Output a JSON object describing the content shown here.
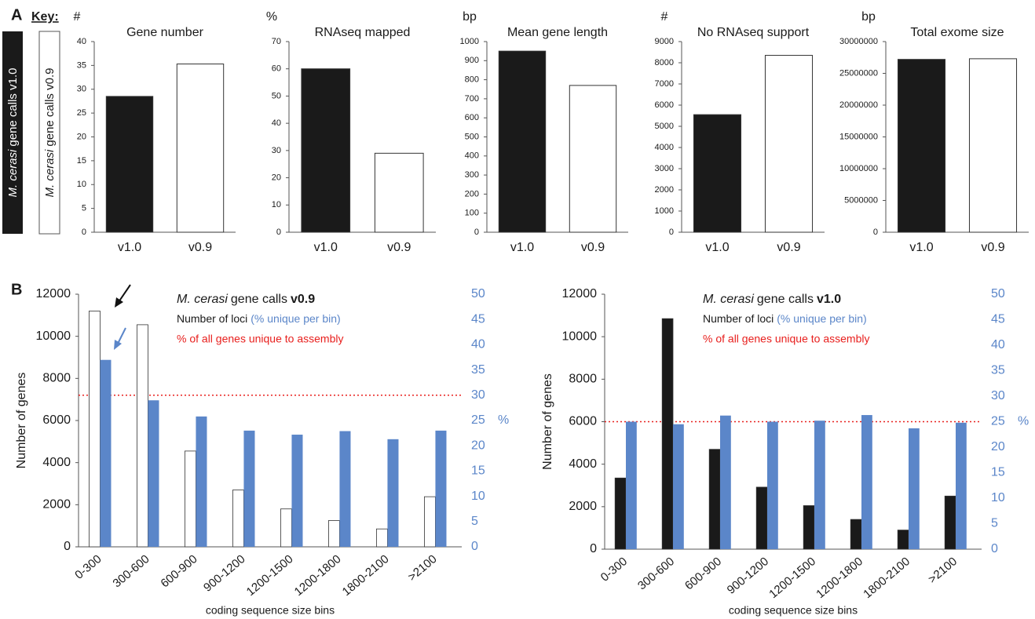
{
  "panel_labels": [
    "A",
    "B"
  ],
  "key": {
    "title": "Key:",
    "items": [
      [
        "M. cerasi",
        "gene calls v1.0"
      ],
      [
        "M. cerasi",
        "gene calls v0.9"
      ]
    ]
  },
  "chart_data": [
    {
      "type": "bar",
      "title": "Gene number",
      "ylabel": "#",
      "categories": [
        "v1.0",
        "v0.9"
      ],
      "values": [
        28.5,
        35.3
      ],
      "colors": [
        "#1a1a1a",
        "#ffffff"
      ],
      "ylim": [
        0,
        40
      ],
      "yticks": [
        0,
        5,
        10,
        15,
        20,
        25,
        30,
        35,
        40
      ]
    },
    {
      "type": "bar",
      "title": "RNAseq mapped",
      "ylabel": "%",
      "categories": [
        "v1.0",
        "v0.9"
      ],
      "values": [
        60,
        29
      ],
      "colors": [
        "#1a1a1a",
        "#ffffff"
      ],
      "ylim": [
        0,
        70
      ],
      "yticks": [
        0,
        10,
        20,
        30,
        40,
        50,
        60,
        70
      ]
    },
    {
      "type": "bar",
      "title": "Mean gene length",
      "ylabel": "bp",
      "categories": [
        "v1.0",
        "v0.9"
      ],
      "values": [
        950,
        770
      ],
      "colors": [
        "#1a1a1a",
        "#ffffff"
      ],
      "ylim": [
        0,
        1000
      ],
      "yticks": [
        0,
        100,
        200,
        300,
        400,
        500,
        600,
        700,
        800,
        900,
        1000
      ]
    },
    {
      "type": "bar",
      "title": "No RNAseq support",
      "ylabel": "#",
      "categories": [
        "v1.0",
        "v0.9"
      ],
      "values": [
        5550,
        8350
      ],
      "colors": [
        "#1a1a1a",
        "#ffffff"
      ],
      "ylim": [
        0,
        9000
      ],
      "yticks": [
        0,
        1000,
        2000,
        3000,
        4000,
        5000,
        6000,
        7000,
        8000,
        9000
      ]
    },
    {
      "type": "bar",
      "title": "Total exome size",
      "ylabel": "bp",
      "categories": [
        "v1.0",
        "v0.9"
      ],
      "values": [
        27200000,
        27300000
      ],
      "colors": [
        "#1a1a1a",
        "#ffffff"
      ],
      "ylim": [
        0,
        30000000
      ],
      "yticks": [
        0,
        5000000,
        10000000,
        15000000,
        20000000,
        25000000,
        30000000
      ]
    },
    {
      "type": "dual-bar",
      "title": [
        "M. cerasi",
        "gene calls",
        "v0.9"
      ],
      "ylabel": "Number of genes",
      "y2label": "%",
      "xlabel": "coding sequence size bins",
      "categories": [
        "0-300",
        "300-600",
        "600-900",
        "900-1200",
        "1200-1500",
        "1200-1800",
        "1800-2100",
        ">2100"
      ],
      "series": [
        {
          "name": "Number of loci",
          "color": "#ffffff",
          "values": [
            11200,
            10550,
            4550,
            2700,
            1800,
            1250,
            850,
            2380
          ]
        },
        {
          "name": "(% unique per bin)",
          "color": "#5b86c9",
          "axis": "y2",
          "values": [
            37,
            29,
            25.8,
            23,
            22.2,
            22.9,
            21.3,
            23
          ]
        }
      ],
      "hline": {
        "value": 30,
        "axis": "y2",
        "label": "% of all genes unique to assembly",
        "color": "#e8201e"
      },
      "ylim": [
        0,
        12000
      ],
      "yticks": [
        0,
        2000,
        4000,
        6000,
        8000,
        10000,
        12000
      ],
      "y2lim": [
        0,
        50
      ],
      "y2ticks": [
        0,
        5,
        10,
        15,
        20,
        25,
        30,
        35,
        40,
        45,
        50
      ]
    },
    {
      "type": "dual-bar",
      "title": [
        "M. cerasi",
        "gene calls",
        "v1.0"
      ],
      "ylabel": "Number of genes",
      "y2label": "%",
      "xlabel": "coding sequence size bins",
      "categories": [
        "0-300",
        "300-600",
        "600-900",
        "900-1200",
        "1200-1500",
        "1200-1800",
        "1800-2100",
        ">2100"
      ],
      "series": [
        {
          "name": "Number of loci",
          "color": "#1a1a1a",
          "values": [
            3350,
            10850,
            4700,
            2920,
            2050,
            1400,
            900,
            2500
          ]
        },
        {
          "name": "(% unique per bin)",
          "color": "#5b86c9",
          "axis": "y2",
          "values": [
            25,
            24.5,
            26.2,
            25,
            25.2,
            26.3,
            23.7,
            24.8
          ]
        }
      ],
      "hline": {
        "value": 25,
        "axis": "y2",
        "label": "% of all genes unique to assembly",
        "color": "#e8201e"
      },
      "ylim": [
        0,
        12000
      ],
      "yticks": [
        0,
        2000,
        4000,
        6000,
        8000,
        10000,
        12000
      ],
      "y2lim": [
        0,
        50
      ],
      "y2ticks": [
        0,
        5,
        10,
        15,
        20,
        25,
        30,
        35,
        40,
        45,
        50
      ]
    }
  ]
}
